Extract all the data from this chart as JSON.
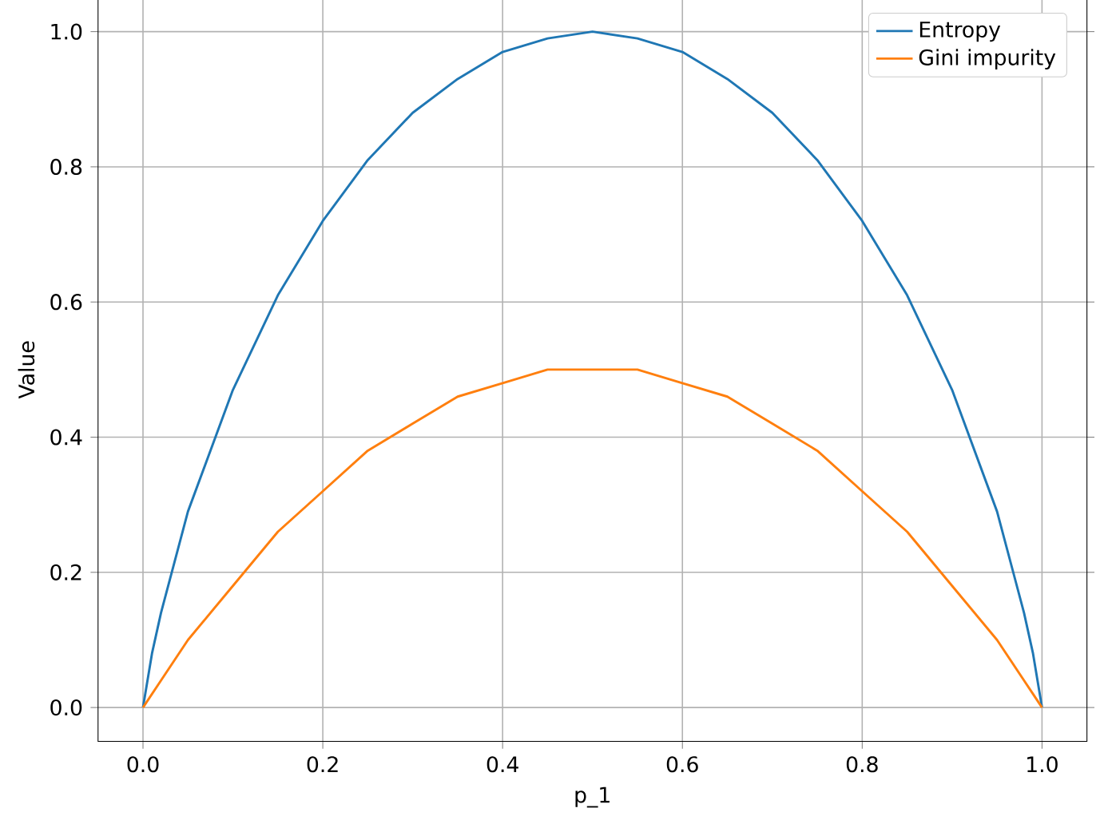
{
  "chart_data": {
    "type": "line",
    "xlabel": "p_1",
    "ylabel": "Value",
    "xlim": [
      -0.05,
      1.05
    ],
    "ylim": [
      -0.05,
      1.05
    ],
    "xticks": [
      {
        "value": 0,
        "label": "0.0"
      },
      {
        "value": 0.2,
        "label": "0.2"
      },
      {
        "value": 0.4,
        "label": "0.4"
      },
      {
        "value": 0.6,
        "label": "0.6"
      },
      {
        "value": 0.8,
        "label": "0.8"
      },
      {
        "value": 1,
        "label": "1.0"
      }
    ],
    "yticks": [
      {
        "value": 0,
        "label": "0.0"
      },
      {
        "value": 0.2,
        "label": "0.2"
      },
      {
        "value": 0.4,
        "label": "0.4"
      },
      {
        "value": 0.6,
        "label": "0.6"
      },
      {
        "value": 0.8,
        "label": "0.8"
      },
      {
        "value": 1,
        "label": "1.0"
      }
    ],
    "grid": true,
    "legend": "top right",
    "marker": "none",
    "line_style": "solid",
    "x": [
      0,
      0.01,
      0.02,
      0.05,
      0.1,
      0.15,
      0.2,
      0.25,
      0.3,
      0.35,
      0.4,
      0.45,
      0.5,
      0.55,
      0.6,
      0.65,
      0.7,
      0.75,
      0.8,
      0.85,
      0.9,
      0.95,
      0.98,
      0.99,
      1
    ],
    "series": [
      {
        "name": "Entropy",
        "color": "#1f77b4",
        "values": [
          0,
          0.08,
          0.14,
          0.29,
          0.47,
          0.61,
          0.72,
          0.81,
          0.88,
          0.93,
          0.97,
          0.99,
          1.0,
          0.99,
          0.97,
          0.93,
          0.88,
          0.81,
          0.72,
          0.61,
          0.47,
          0.29,
          0.14,
          0.08,
          0
        ]
      },
      {
        "name": "Gini impurity",
        "color": "#ff7f0e",
        "values": [
          0,
          0.02,
          0.04,
          0.1,
          0.18,
          0.26,
          0.32,
          0.38,
          0.42,
          0.46,
          0.48,
          0.5,
          0.5,
          0.5,
          0.48,
          0.46,
          0.42,
          0.38,
          0.32,
          0.26,
          0.18,
          0.1,
          0.04,
          0.02,
          0
        ]
      }
    ]
  }
}
